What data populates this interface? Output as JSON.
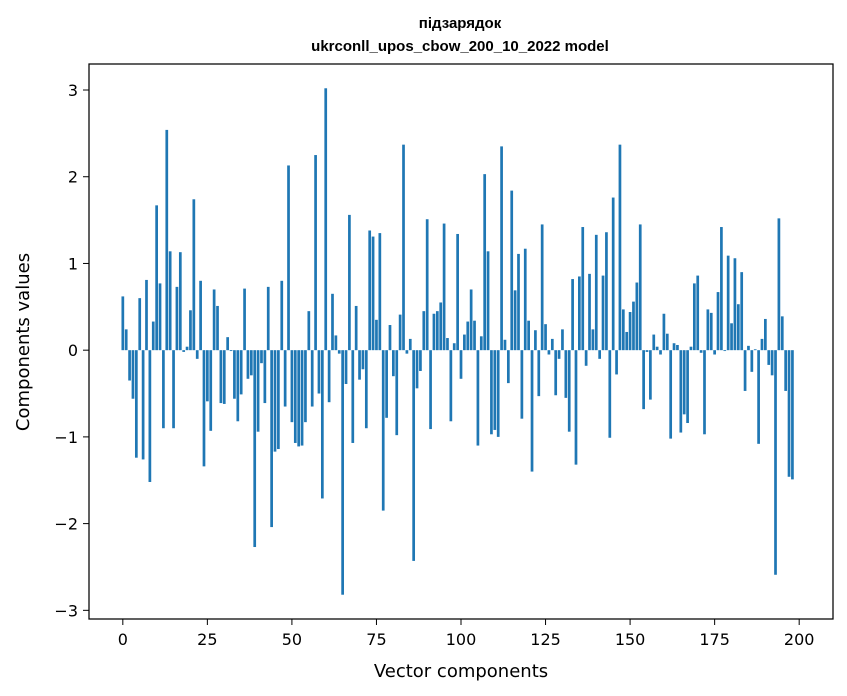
{
  "chart_data": {
    "type": "bar",
    "title_line1": "підзарядок",
    "title_line2": "ukrconll_upos_cbow_200_10_2022 model",
    "xlabel": "Vector components",
    "ylabel": "Components values",
    "xlim": [
      -10,
      210
    ],
    "ylim": [
      -3.1,
      3.3
    ],
    "xticks": [
      0,
      25,
      50,
      75,
      100,
      125,
      150,
      175,
      200
    ],
    "yticks": [
      -3,
      -2,
      -1,
      0,
      1,
      2,
      3
    ],
    "ytick_labels": [
      "−3",
      "−2",
      "−1",
      "0",
      "1",
      "2",
      "3"
    ],
    "grid": false,
    "bar_color": "#1f77b4",
    "values": [
      0.62,
      0.24,
      -0.35,
      -0.56,
      -1.24,
      0.6,
      -1.26,
      0.81,
      -1.52,
      0.33,
      1.67,
      0.77,
      -0.9,
      2.54,
      1.14,
      -0.9,
      0.73,
      1.13,
      -0.02,
      0.04,
      0.46,
      1.74,
      -0.1,
      0.8,
      -1.34,
      -0.59,
      -0.93,
      0.7,
      0.51,
      -0.61,
      -0.62,
      0.15,
      -0.01,
      -0.56,
      -0.82,
      -0.51,
      0.71,
      -0.33,
      -0.29,
      -2.27,
      -0.94,
      -0.15,
      -0.61,
      0.73,
      -2.04,
      -1.17,
      -1.14,
      0.8,
      -0.65,
      2.13,
      -0.83,
      -1.07,
      -1.11,
      -1.1,
      -0.83,
      0.45,
      -0.65,
      2.25,
      -0.5,
      -1.71,
      3.02,
      -0.6,
      0.65,
      0.17,
      -0.04,
      -2.82,
      -0.39,
      1.56,
      -1.07,
      0.51,
      -0.34,
      -0.22,
      -0.9,
      1.38,
      1.31,
      0.35,
      1.35,
      -1.85,
      -0.78,
      0.29,
      -0.3,
      -0.98,
      0.41,
      2.37,
      -0.04,
      0.13,
      -2.43,
      -0.44,
      -0.24,
      0.45,
      1.51,
      -0.91,
      0.42,
      0.45,
      0.55,
      1.46,
      0.14,
      -0.82,
      0.08,
      1.34,
      -0.33,
      0.18,
      0.33,
      0.7,
      0.34,
      -1.1,
      0.16,
      2.03,
      1.14,
      -0.97,
      -0.92,
      -1.0,
      2.35,
      0.12,
      -0.38,
      1.84,
      0.69,
      1.11,
      -0.79,
      1.17,
      0.34,
      -1.4,
      0.23,
      -0.53,
      1.45,
      0.3,
      -0.05,
      0.13,
      -0.52,
      -0.1,
      0.24,
      -0.55,
      -0.94,
      0.82,
      -1.32,
      0.85,
      1.42,
      -0.18,
      0.88,
      0.24,
      1.33,
      -0.1,
      0.86,
      1.36,
      -1.01,
      1.76,
      -0.28,
      2.37,
      0.47,
      0.21,
      0.44,
      0.56,
      0.78,
      1.45,
      -0.68,
      -0.02,
      -0.57,
      0.18,
      0.04,
      -0.05,
      0.42,
      0.19,
      -1.02,
      0.08,
      0.06,
      -0.95,
      -0.74,
      -0.84,
      0.04,
      0.77,
      0.86,
      -0.03,
      -0.97,
      0.47,
      0.43,
      -0.05,
      0.67,
      1.42,
      -0.01,
      1.09,
      0.31,
      1.06,
      0.53,
      0.9,
      -0.47,
      0.05,
      -0.25,
      0.01,
      -1.08,
      0.13,
      0.36,
      -0.17,
      -0.29,
      -2.59,
      1.52,
      0.39,
      -0.47,
      -1.46,
      -1.49
    ]
  }
}
